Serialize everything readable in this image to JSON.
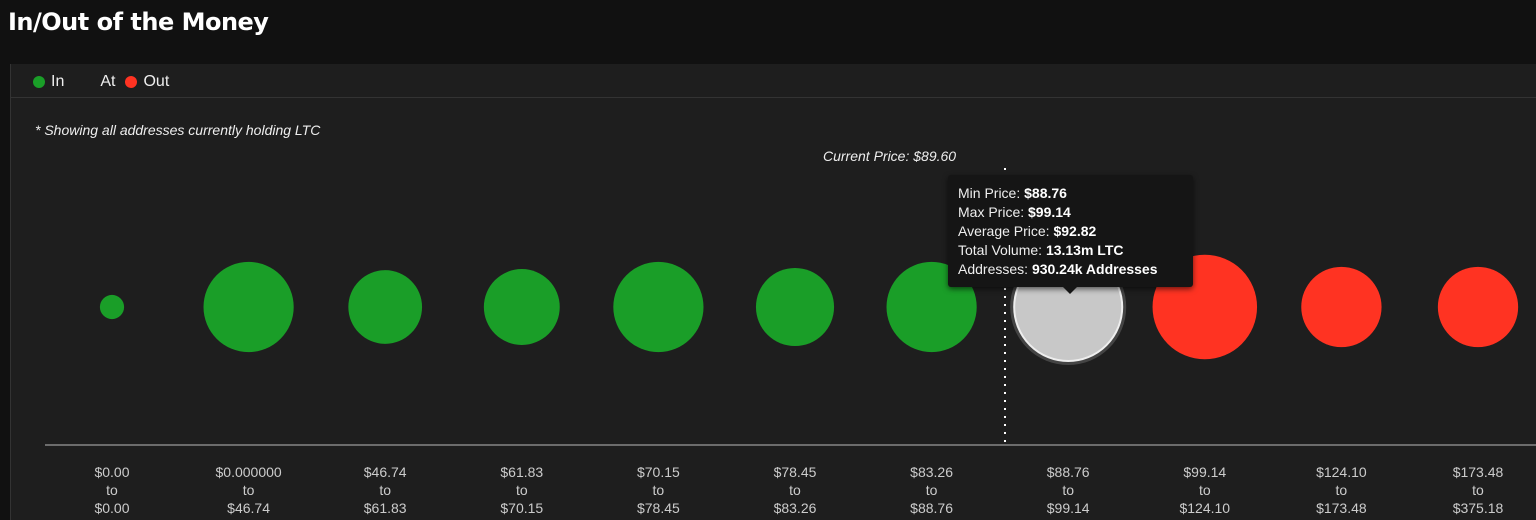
{
  "header": {
    "title": "In/Out of the Money"
  },
  "legend": [
    {
      "label": "In",
      "color": "#1a9e28"
    },
    {
      "label": "At",
      "color": ""
    },
    {
      "label": "Out",
      "color": "#ff3322"
    }
  ],
  "note": "* Showing all addresses currently holding LTC",
  "current_price_label": "Current Price: $89.60",
  "tooltip": {
    "rows": [
      {
        "label": "Min Price: ",
        "value": "$88.76"
      },
      {
        "label": "Max Price: ",
        "value": "$99.14"
      },
      {
        "label": "Average Price: ",
        "value": "$92.82"
      },
      {
        "label": "Total Volume: ",
        "value": "13.13m LTC"
      },
      {
        "label": "Addresses: ",
        "value": "930.24k Addresses"
      }
    ]
  },
  "chart_data": {
    "type": "bubble",
    "current_price": 89.6,
    "colors": {
      "in": "#1a9e28",
      "at": "#c8c8c8",
      "out": "#ff3322"
    },
    "categories": [
      {
        "from": "$0.00",
        "to": "$0.00",
        "status": "in",
        "rel_size": 0.22
      },
      {
        "from": "$0.000000",
        "to": "$46.74",
        "status": "in",
        "rel_size": 0.82
      },
      {
        "from": "$46.74",
        "to": "$61.83",
        "status": "in",
        "rel_size": 0.67
      },
      {
        "from": "$61.83",
        "to": "$70.15",
        "status": "in",
        "rel_size": 0.69
      },
      {
        "from": "$70.15",
        "to": "$78.45",
        "status": "in",
        "rel_size": 0.82
      },
      {
        "from": "$78.45",
        "to": "$83.26",
        "status": "in",
        "rel_size": 0.71
      },
      {
        "from": "$83.26",
        "to": "$88.76",
        "status": "in",
        "rel_size": 0.82
      },
      {
        "from": "$88.76",
        "to": "$99.14",
        "status": "at",
        "rel_size": 1.0
      },
      {
        "from": "$99.14",
        "to": "$124.10",
        "status": "out",
        "rel_size": 0.95
      },
      {
        "from": "$124.10",
        "to": "$173.48",
        "status": "out",
        "rel_size": 0.73
      },
      {
        "from": "$173.48",
        "to": "$375.18",
        "status": "out",
        "rel_size": 0.73
      }
    ],
    "to_word": "to"
  }
}
